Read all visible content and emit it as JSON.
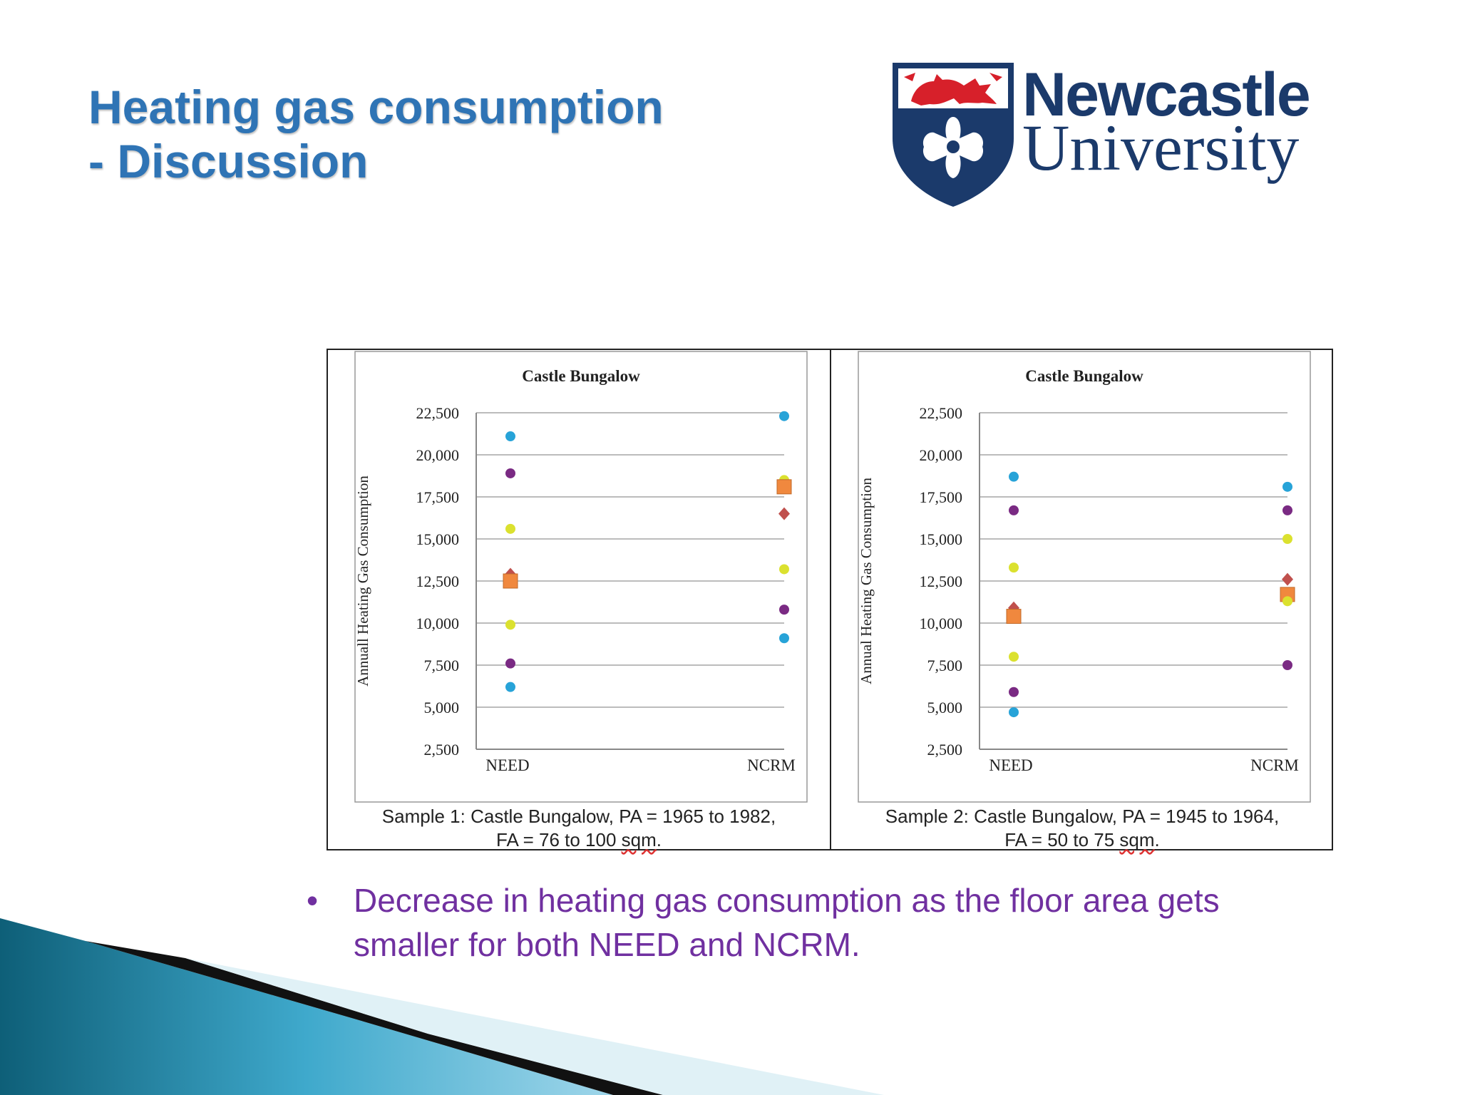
{
  "slide": {
    "title_line1": "Heating gas consumption",
    "title_line2": "- Discussion",
    "logo_line1": "Newcastle",
    "logo_line2": "University",
    "bullet_symbol": "•",
    "bullet_text": "Decrease in heating gas consumption as the floor area gets smaller for both NEED and NCRM."
  },
  "colors": {
    "title": "#2f74b5",
    "logo_navy": "#1b3a6b",
    "logo_red": "#d7202a",
    "bullet": "#7030a0",
    "blue_dot": "#27a3d8",
    "purple_dot": "#7a2a83",
    "yellow_dot": "#dbe12f",
    "diamond": "#c0504d",
    "square": "#f0883e"
  },
  "captions": [
    {
      "line1": "Sample 1: Castle Bungalow, PA = 1965 to 1982,",
      "line2_pre": "FA = 76 to 100 ",
      "line2_unit": "sqm",
      "line2_post": "."
    },
    {
      "line1": "Sample 2: Castle Bungalow, PA = 1945 to 1964,",
      "line2_pre": "FA = 50 to 75 ",
      "line2_unit": "sqm",
      "line2_post": "."
    }
  ],
  "chart_data": [
    {
      "type": "scatter",
      "title": "Castle Bungalow",
      "xlabel": "",
      "ylabel": "Annuall Heating Gas Consumption",
      "categories": [
        "NEED",
        "NCRM"
      ],
      "ylim": [
        2500,
        22500
      ],
      "yticks": [
        "2,500",
        "5,000",
        "7,500",
        "10,000",
        "12,500",
        "15,000",
        "17,500",
        "20,000",
        "22,500"
      ],
      "grid": true,
      "points": [
        {
          "category": "NEED",
          "value": 21100,
          "marker": "circle",
          "color": "#27a3d8"
        },
        {
          "category": "NEED",
          "value": 18900,
          "marker": "circle",
          "color": "#7a2a83"
        },
        {
          "category": "NEED",
          "value": 15600,
          "marker": "circle",
          "color": "#dbe12f"
        },
        {
          "category": "NEED",
          "value": 12900,
          "marker": "diamond",
          "color": "#c0504d"
        },
        {
          "category": "NEED",
          "value": 12500,
          "marker": "square",
          "color": "#f0883e"
        },
        {
          "category": "NEED",
          "value": 9900,
          "marker": "circle",
          "color": "#dbe12f"
        },
        {
          "category": "NEED",
          "value": 7600,
          "marker": "circle",
          "color": "#7a2a83"
        },
        {
          "category": "NEED",
          "value": 6200,
          "marker": "circle",
          "color": "#27a3d8"
        },
        {
          "category": "NCRM",
          "value": 22300,
          "marker": "circle",
          "color": "#27a3d8"
        },
        {
          "category": "NCRM",
          "value": 18500,
          "marker": "circle",
          "color": "#dbe12f"
        },
        {
          "category": "NCRM",
          "value": 18100,
          "marker": "square",
          "color": "#f0883e"
        },
        {
          "category": "NCRM",
          "value": 16500,
          "marker": "diamond",
          "color": "#c0504d"
        },
        {
          "category": "NCRM",
          "value": 13200,
          "marker": "circle",
          "color": "#dbe12f"
        },
        {
          "category": "NCRM",
          "value": 10800,
          "marker": "circle",
          "color": "#7a2a83"
        },
        {
          "category": "NCRM",
          "value": 9100,
          "marker": "circle",
          "color": "#27a3d8"
        }
      ]
    },
    {
      "type": "scatter",
      "title": "Castle Bungalow",
      "xlabel": "",
      "ylabel": "Annual Heating Gas Consumption",
      "categories": [
        "NEED",
        "NCRM"
      ],
      "ylim": [
        2500,
        22500
      ],
      "yticks": [
        "2,500",
        "5,000",
        "7,500",
        "10,000",
        "12,500",
        "15,000",
        "17,500",
        "20,000",
        "22,500"
      ],
      "grid": true,
      "points": [
        {
          "category": "NEED",
          "value": 18700,
          "marker": "circle",
          "color": "#27a3d8"
        },
        {
          "category": "NEED",
          "value": 16700,
          "marker": "circle",
          "color": "#7a2a83"
        },
        {
          "category": "NEED",
          "value": 13300,
          "marker": "circle",
          "color": "#dbe12f"
        },
        {
          "category": "NEED",
          "value": 10900,
          "marker": "diamond",
          "color": "#c0504d"
        },
        {
          "category": "NEED",
          "value": 10400,
          "marker": "square",
          "color": "#f0883e"
        },
        {
          "category": "NEED",
          "value": 8000,
          "marker": "circle",
          "color": "#dbe12f"
        },
        {
          "category": "NEED",
          "value": 5900,
          "marker": "circle",
          "color": "#7a2a83"
        },
        {
          "category": "NEED",
          "value": 4700,
          "marker": "circle",
          "color": "#27a3d8"
        },
        {
          "category": "NCRM",
          "value": 18100,
          "marker": "circle",
          "color": "#27a3d8"
        },
        {
          "category": "NCRM",
          "value": 16700,
          "marker": "circle",
          "color": "#7a2a83"
        },
        {
          "category": "NCRM",
          "value": 15000,
          "marker": "circle",
          "color": "#dbe12f"
        },
        {
          "category": "NCRM",
          "value": 12600,
          "marker": "diamond",
          "color": "#c0504d"
        },
        {
          "category": "NCRM",
          "value": 11700,
          "marker": "square",
          "color": "#f0883e"
        },
        {
          "category": "NCRM",
          "value": 11300,
          "marker": "circle",
          "color": "#dbe12f"
        },
        {
          "category": "NCRM",
          "value": 7500,
          "marker": "circle",
          "color": "#7a2a83"
        }
      ]
    }
  ]
}
